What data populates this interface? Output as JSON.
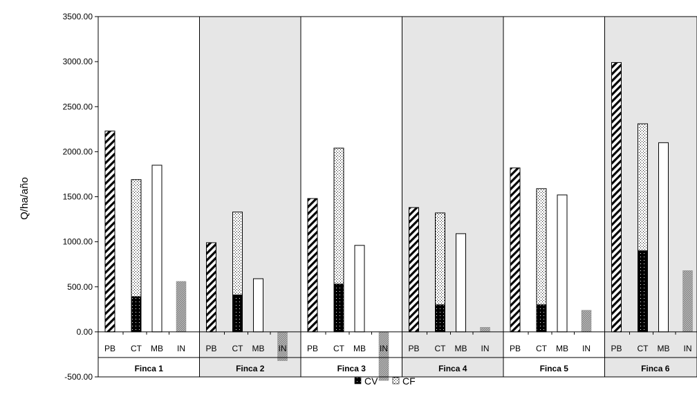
{
  "chart_data": {
    "type": "bar",
    "ylabel": "Q/ha/año",
    "ylim": [
      -500,
      3500
    ],
    "y_ticks": [
      "3500.00",
      "3000.00",
      "2500.00",
      "2000.00",
      "1500.00",
      "1000.00",
      "500.00",
      "0.00",
      "-500.00"
    ],
    "groups": [
      "Finca 1",
      "Finca 2",
      "Finca 3",
      "Finca 4",
      "Finca 5",
      "Finca 6"
    ],
    "categories": [
      "PB",
      "CT",
      "MB",
      "IN"
    ],
    "shaded_groups": [
      false,
      true,
      false,
      true,
      false,
      true
    ],
    "values": {
      "PB": [
        2230,
        990,
        1480,
        1380,
        1820,
        2990
      ],
      "CT": [
        1690,
        1330,
        2040,
        1320,
        1590,
        2310
      ],
      "MB": [
        1850,
        590,
        960,
        1090,
        1520,
        2100
      ],
      "IN": [
        560,
        -320,
        -540,
        50,
        240,
        680
      ]
    },
    "CT_components": {
      "CV": [
        390,
        410,
        530,
        300,
        300,
        900
      ],
      "CF": [
        1300,
        920,
        1510,
        1020,
        1290,
        1410
      ]
    },
    "legend": [
      "CV",
      "CF"
    ],
    "colors": {
      "cv": "#000000",
      "panel_shade": "#e6e6e6",
      "in_bar": "#9a9a9a"
    }
  }
}
